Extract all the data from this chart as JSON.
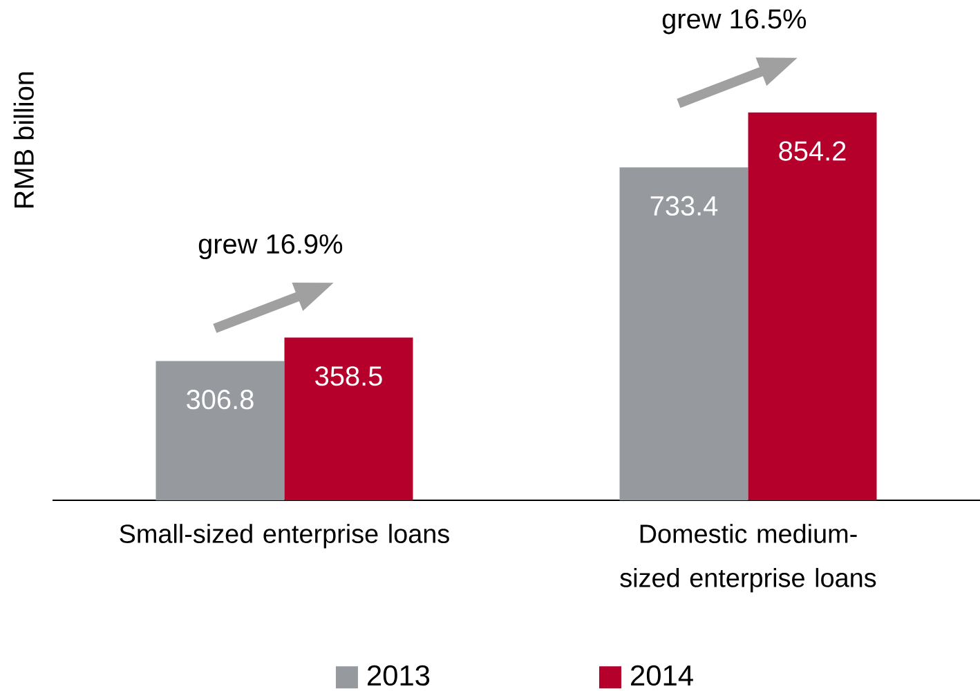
{
  "chart_data": {
    "type": "bar",
    "ylabel": "RMB billion",
    "categories": [
      "Small-sized enterprise loans",
      "Domestic medium-sized enterprise loans"
    ],
    "series": [
      {
        "name": "2013",
        "color": "#969a9f",
        "values": [
          306.8,
          733.4
        ]
      },
      {
        "name": "2014",
        "color": "#b5002c",
        "values": [
          358.5,
          854.2
        ]
      }
    ],
    "data_labels": true,
    "legend": "bottom",
    "grid": false,
    "annotations": [
      "grew 16.9%",
      "grew 16.5%"
    ]
  }
}
